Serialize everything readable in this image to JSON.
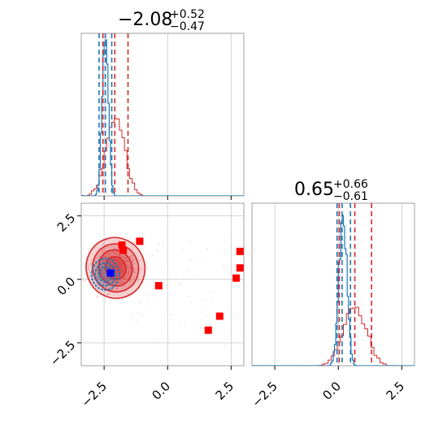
{
  "colors": {
    "red": "#d62728",
    "blue": "#1f77b4",
    "square_red": "#ff0000",
    "square_blue": "#0000ff",
    "grid": "#c8c8c8"
  },
  "chart_data": [
    {
      "type": "histogram",
      "panel": "top-left",
      "title": {
        "main": "−2.08",
        "sup": "+0.52",
        "sub": "−0.47"
      },
      "xlim": [
        -3.4,
        3.0
      ],
      "xticks": [
        -2.5,
        0.0,
        2.5
      ],
      "grid": true,
      "red_quantiles": [
        -2.55,
        -2.08,
        -1.56
      ],
      "blue_quantiles": [
        -2.7,
        -2.45,
        -2.2
      ]
    },
    {
      "type": "scatter",
      "panel": "bottom-left",
      "xlim": [
        -3.4,
        3.0
      ],
      "ylim": [
        -3.4,
        3.0
      ],
      "xticks": [
        -2.5,
        0.0,
        2.5
      ],
      "yticks": [
        -2.5,
        0.0,
        2.5
      ],
      "xtick_labels": [
        "−2.5",
        "0.0",
        "2.5"
      ],
      "ytick_labels": [
        "−2.5",
        "0.0",
        "2.5"
      ],
      "grid": true,
      "red_squares": [
        {
          "x": -1.8,
          "y": 1.35
        },
        {
          "x": -1.75,
          "y": 1.15
        },
        {
          "x": -1.1,
          "y": 1.5
        },
        {
          "x": -0.35,
          "y": -0.25
        },
        {
          "x": 2.7,
          "y": 0.05
        },
        {
          "x": 2.85,
          "y": 0.45
        },
        {
          "x": 2.85,
          "y": 1.1
        },
        {
          "x": 2.05,
          "y": -1.45
        },
        {
          "x": 1.6,
          "y": -2.0
        }
      ],
      "blue_square": {
        "x": -2.25,
        "y": 0.25
      },
      "red_density_center": {
        "x": -2.05,
        "y": 0.45
      },
      "blue_density_center": {
        "x": -2.45,
        "y": 0.2
      }
    },
    {
      "type": "histogram",
      "panel": "bottom-right",
      "title": {
        "main": "0.65",
        "sup": "+0.66",
        "sub": "−0.61"
      },
      "xlim": [
        -3.4,
        3.0
      ],
      "xticks": [
        -2.5,
        0.0,
        2.5
      ],
      "xtick_labels": [
        "−2.5",
        "0.0",
        "2.5"
      ],
      "grid": true,
      "red_quantiles": [
        0.04,
        0.65,
        1.31
      ],
      "blue_quantiles": [
        -0.05,
        0.15,
        0.48
      ]
    }
  ]
}
